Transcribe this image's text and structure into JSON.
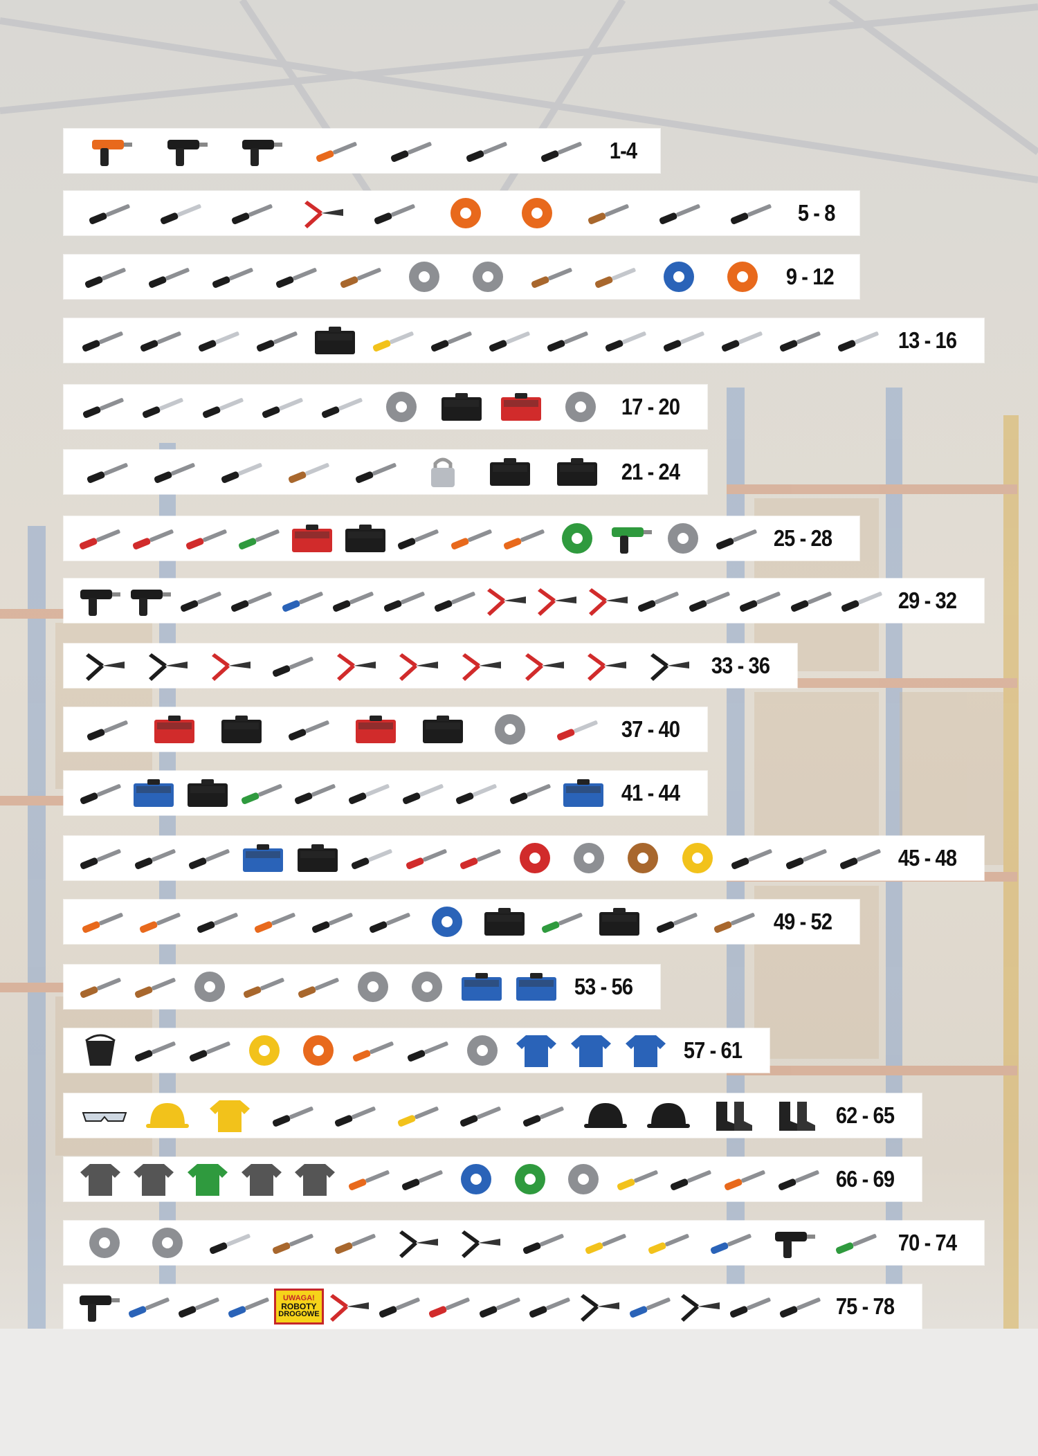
{
  "catalog": {
    "strips": [
      {
        "range": "1-4",
        "items": [
          "hammer-drill-icon",
          "foam-gun-icon",
          "caulking-gun-icon",
          "hammer-icon",
          "axe-icon",
          "crowbar-icon",
          "pry-bar-icon"
        ]
      },
      {
        "range": "5 - 8",
        "items": [
          "utility-knife-icon",
          "blades-icon",
          "hook-blade-icon",
          "glass-cutter-icon",
          "folding-knife-icon",
          "tape-measure-icon",
          "long-tape-icon",
          "folding-rule-icon",
          "spirit-level-icon",
          "hand-saw-icon"
        ]
      },
      {
        "range": "9 - 12",
        "items": [
          "markers-icon",
          "carpenter-pencils-icon",
          "scriber-icon",
          "marker-icon",
          "square-ruler-icon",
          "diamond-disc-icon",
          "cutting-disc-icon",
          "cup-brush-icon",
          "wire-brush-icon",
          "strip-disc-icon",
          "flap-wheel-icon"
        ]
      },
      {
        "range": "13 - 16",
        "items": [
          "saber-blade-icon",
          "oscillating-blade-icon",
          "core-bit-icon",
          "hole-saw-icon",
          "hole-saw-set-icon",
          "step-drill-icon",
          "diamond-core-icon",
          "tile-drill-icon",
          "bimetal-saw-icon",
          "bit-icon",
          "socket-adapter-icon",
          "bit-holders-icon",
          "forstner-icon",
          "router-bit-icon"
        ]
      },
      {
        "range": "17 - 20",
        "items": [
          "chuck-key-icon",
          "drill-bit-icon",
          "wood-drill-icon",
          "auger-bit-icon",
          "spade-bit-icon",
          "saw-blade-icon",
          "drill-set-icon",
          "drill-case-icon",
          "jigsaw-blades-icon"
        ]
      },
      {
        "range": "21 - 24",
        "items": [
          "chisel-icon",
          "file-handle-icon",
          "tile-bit-icon",
          "wire-brush-hand-icon",
          "sharpening-stone-icon",
          "padlock-icon",
          "toolbox-icon",
          "organizer-icon"
        ]
      },
      {
        "range": "25 - 28",
        "items": [
          "screwdriver-icon",
          "screwdriver-thin-icon",
          "screwdriver-black-icon",
          "screwdriver-green-icon",
          "screwdriver-set-icon",
          "precision-set-icon",
          "test-leads-icon",
          "gas-torch-icon",
          "torch-head-icon",
          "soldering-gun-icon",
          "glue-gun-icon",
          "solder-wire-icon",
          "glue-sticks-icon"
        ]
      },
      {
        "range": "29 - 32",
        "items": [
          "spray-gun-icon",
          "blow-gun-icon",
          "tire-gauge-icon",
          "coupler-icon",
          "air-hose-icon",
          "ratchet-strap-icon",
          "bungee-icon",
          "cable-ties-icon",
          "pipe-cutter-icon",
          "pvc-cutter-icon",
          "water-pump-pliers-icon",
          "pipe-wrench-icon",
          "adjustable-wrench-icon",
          "drain-cable-icon",
          "stapler-icon",
          "staples-icon"
        ]
      },
      {
        "range": "33 - 36",
        "items": [
          "rivet-gun-icon",
          "riveter-icon",
          "crimper-icon",
          "scraper-icon",
          "tin-snips-icon",
          "combination-pliers-icon",
          "end-cutter-icon",
          "side-cutter-icon",
          "long-nose-pliers-icon",
          "wire-stripper-icon"
        ]
      },
      {
        "range": "37 - 40",
        "items": [
          "combination-wrench-icon",
          "wrench-set-icon",
          "socket-set-icon",
          "ratchet-icon",
          "socket-case-icon",
          "bit-box-icon",
          "ring-spanner-icon",
          "impact-sockets-icon"
        ]
      },
      {
        "range": "41 - 44",
        "items": [
          "hex-keys-icon",
          "magnetic-tray-icon",
          "socket-kit-icon",
          "multimeter-icon",
          "suction-lifter-icon",
          "socket-icon",
          "tube-spanner-icon",
          "extension-bar-icon",
          "puller-icon",
          "punch-set-icon"
        ]
      },
      {
        "range": "45 - 48",
        "items": [
          "file-icon",
          "wood-chisel-icon",
          "center-punch-icon",
          "chisel-set-icon",
          "drawer-cabinet-icon",
          "grinding-bits-icon",
          "bench-vise-icon",
          "clamp-icon",
          "spring-clamp-icon",
          "sanding-pad-icon",
          "sanding-disc-icon",
          "foam-pad-icon",
          "sanding-block-icon",
          "delta-pad-icon",
          "sandpaper-icon"
        ]
      },
      {
        "range": "49 - 52",
        "items": [
          "trowel-icon",
          "float-icon",
          "spatula-icon",
          "pointing-trowel-icon",
          "duct-tape-icon",
          "warning-tape-icon",
          "insulation-roll-icon",
          "label-set-icon",
          "mesh-bag-icon",
          "film-pack-icon",
          "protective-film-icon",
          "broom-brush-icon"
        ]
      },
      {
        "range": "53 - 56",
        "items": [
          "paint-brush-icon",
          "block-brush-icon",
          "roller-frame-icon",
          "wall-brush-icon",
          "coir-brush-icon",
          "paint-roller-icon",
          "roller-sleeve-icon",
          "paint-tray-icon",
          "tray-icon"
        ]
      },
      {
        "range": "57 - 61",
        "items": [
          "bucket-icon",
          "mixer-paddle-icon",
          "putty-knife-icon",
          "trimmer-line-icon",
          "chalk-line-icon",
          "chalk-bottle-icon",
          "plane-icon",
          "string-reel-icon",
          "work-gloves-icon",
          "leather-gloves-icon",
          "black-gloves-icon"
        ]
      },
      {
        "range": "62 - 65",
        "items": [
          "safety-glasses-icon",
          "hard-hat-icon",
          "hi-vis-vest-icon",
          "face-shield-icon",
          "knee-pad-icon",
          "ear-muffs-icon",
          "dust-mask-icon",
          "tool-belt-icon",
          "beanie-lamp-icon",
          "cap-icon",
          "work-boots-icon",
          "rubber-boots-icon"
        ]
      },
      {
        "range": "66 - 69",
        "items": [
          "fleece-jacket-icon",
          "flannel-shirt-icon",
          "rain-coat-icon",
          "coverall-icon",
          "work-trousers-icon",
          "headlamp-icon",
          "work-light-icon",
          "insulation-tape-icon",
          "green-ring-icon",
          "circlip-icon",
          "connectors-icon",
          "knife-black-icon",
          "folding-knife-orange-icon",
          "machete-icon"
        ]
      },
      {
        "range": "70 - 74",
        "items": [
          "zip-ties-roll-icon",
          "wire-coil-icon",
          "chain-mesh-icon",
          "leveling-staff-icon",
          "floor-brush-icon",
          "pruning-shears-icon",
          "lopper-icon",
          "pruning-saw-icon",
          "hose-connector-icon",
          "tap-adapter-icon",
          "hose-coupling-icon",
          "pressure-sprayer-icon",
          "tarpaulin-icon"
        ]
      },
      {
        "range": "75 - 78",
        "items": [
          "spray-nozzle-icon",
          "hose-fittings-icon",
          "nozzle-icon",
          "garden-hose-icon",
          "warning-sign-icon",
          "tile-cutter-icon",
          "floor-jack-icon",
          "trestle-clamps-icon",
          "shims-icon",
          "sawhorse-icon",
          "tile-nippers-icon",
          "float-blue-icon",
          "scissors-icon",
          "chisel-tips-icon",
          "multitool-icon"
        ]
      }
    ],
    "warning_sign": {
      "line1": "UWAGA!",
      "line2": "ROBOTY",
      "line3": "DROGOWE"
    }
  }
}
